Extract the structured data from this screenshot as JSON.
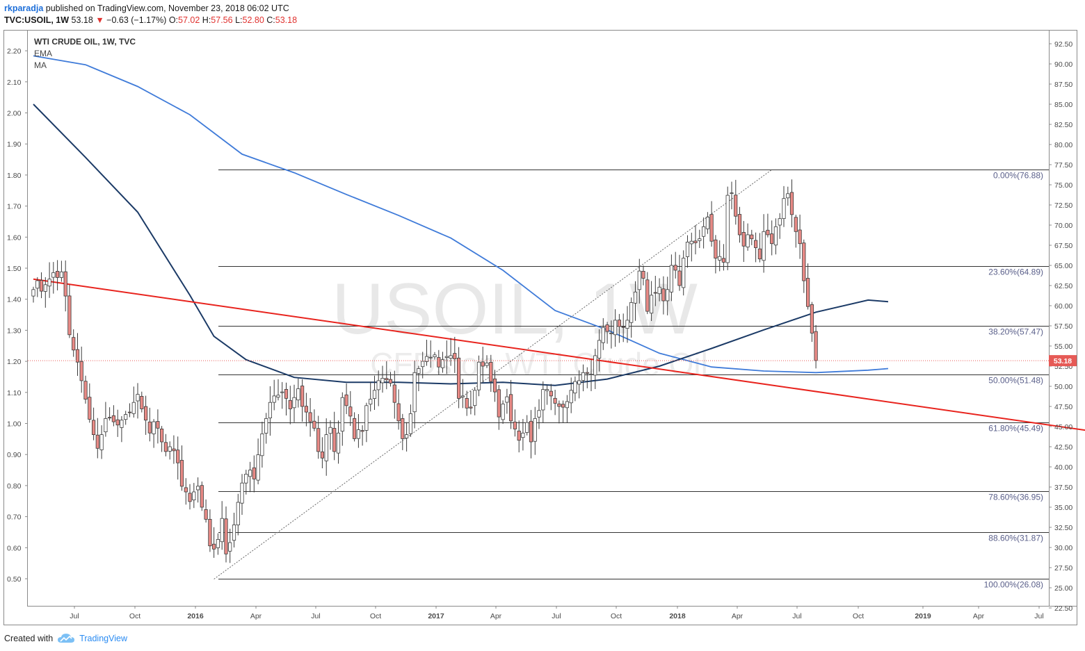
{
  "header": {
    "author": "rkparadja",
    "published": "published on TradingView.com, November 23, 2018 06:02 UTC",
    "symbol": "TVC:USOIL, 1W",
    "last": "53.18",
    "change": "−0.63 (−1.17%)",
    "o_label": "O:",
    "o_value": "57.02",
    "h_label": "H:",
    "h_value": "57.56",
    "l_label": "L:",
    "l_value": "52.80",
    "c_label": "C:",
    "c_value": "53.18"
  },
  "legend": {
    "title": "WTI CRUDE OIL, 1W, TVC",
    "ema": "EMA",
    "ma": "MA"
  },
  "watermark": {
    "big": "USOIL, 1W",
    "small": "CFDs on WTI Crude Oil"
  },
  "footer": {
    "created_with": "Created with",
    "brand": "TradingView"
  },
  "colors": {
    "up_candle": "#ffffff",
    "down_candle": "#e88a86",
    "candle_outline": "#3a3a3a",
    "ema": "#1b3a66",
    "ma": "#3f7bd9",
    "trendline": "#e8231d",
    "fib_line": "#333333",
    "last_price": "#e65a56"
  },
  "chart_data": {
    "type": "candlestick",
    "title": "WTI CRUDE OIL, 1W, TVC",
    "timeframe": "1W",
    "x_ticks": [
      "Jul",
      "Oct",
      "2016",
      "Apr",
      "Jul",
      "Oct",
      "2017",
      "Apr",
      "Jul",
      "Oct",
      "2018",
      "Apr",
      "Jul",
      "Oct",
      "2019",
      "Apr",
      "Jul"
    ],
    "y_ticks_right": [
      "92.50",
      "90.00",
      "87.50",
      "85.00",
      "82.50",
      "80.00",
      "77.50",
      "75.00",
      "72.50",
      "70.00",
      "67.50",
      "65.00",
      "62.50",
      "60.00",
      "57.50",
      "55.00",
      "52.50",
      "50.00",
      "47.50",
      "45.00",
      "42.50",
      "40.00",
      "37.50",
      "35.00",
      "32.50",
      "30.00",
      "27.50",
      "25.00",
      "22.50"
    ],
    "y_ticks_left": [
      "2.20",
      "2.10",
      "2.00",
      "1.90",
      "1.80",
      "1.70",
      "1.60",
      "1.50",
      "1.40",
      "1.30",
      "1.20",
      "1.10",
      "1.00",
      "0.90",
      "0.80",
      "0.70",
      "0.60",
      "0.50"
    ],
    "ylim": [
      22.5,
      93.5
    ],
    "last_price_label": "53.18",
    "fib_levels": [
      {
        "label": "0.00%(76.88)",
        "price": 76.88
      },
      {
        "label": "23.60%(64.89)",
        "price": 64.89
      },
      {
        "label": "38.20%(57.47)",
        "price": 57.47
      },
      {
        "label": "50.00%(51.48)",
        "price": 51.48
      },
      {
        "label": "61.80%(45.49)",
        "price": 45.49
      },
      {
        "label": "78.60%(36.95)",
        "price": 36.95
      },
      {
        "label": "88.60%(31.87)",
        "price": 31.87
      },
      {
        "label": "100.00%(26.08)",
        "price": 26.08
      }
    ],
    "closes": [
      62.0,
      63.1,
      61.8,
      62.6,
      63.3,
      64.1,
      63.5,
      64.2,
      61.2,
      56.4,
      54.5,
      53.0,
      50.7,
      48.4,
      45.9,
      44.0,
      42.3,
      44.0,
      46.0,
      46.1,
      45.6,
      45.2,
      45.8,
      46.5,
      46.8,
      48.0,
      49.0,
      47.2,
      45.8,
      44.2,
      45.6,
      44.8,
      43.1,
      41.9,
      42.5,
      42.0,
      40.5,
      37.6,
      36.9,
      35.7,
      36.9,
      37.6,
      35.0,
      33.5,
      30.2,
      29.8,
      31.0,
      33.6,
      29.2,
      30.6,
      32.8,
      35.6,
      38.0,
      39.1,
      39.6,
      38.5,
      41.5,
      44.1,
      46.0,
      48.0,
      48.8,
      48.9,
      49.3,
      48.5,
      47.2,
      48.6,
      49.7,
      47.5,
      46.8,
      45.6,
      44.8,
      41.9,
      41.1,
      44.0,
      44.9,
      41.9,
      44.2,
      48.6,
      47.6,
      46.3,
      43.5,
      44.6,
      44.4,
      47.6,
      48.4,
      49.5,
      50.7,
      51.0,
      50.8,
      50.4,
      48.0,
      45.7,
      43.5,
      44.0,
      46.6,
      51.7,
      52.2,
      53.1,
      53.7,
      53.6,
      53.9,
      52.4,
      53.3,
      53.7,
      53.8,
      53.4,
      48.5,
      48.8,
      47.3,
      47.3,
      49.5,
      53.0,
      52.5,
      52.9,
      50.6,
      49.3,
      46.2,
      47.8,
      48.7,
      45.7,
      44.7,
      43.3,
      44.2,
      45.5,
      43.1,
      46.0,
      47.0,
      49.6,
      49.6,
      48.8,
      47.9,
      47.5,
      47.4,
      48.1,
      49.5,
      50.6,
      50.7,
      51.7,
      51.6,
      51.5,
      53.8,
      55.7,
      57.3,
      56.8,
      56.6,
      58.2,
      57.4,
      57.3,
      58.2,
      60.4,
      61.7,
      64.3,
      63.4,
      59.3,
      61.3,
      61.6,
      62.3,
      60.6,
      62.0,
      65.0,
      64.4,
      62.5,
      65.9,
      67.9,
      68.0,
      67.8,
      68.3,
      69.8,
      71.0,
      68.0,
      65.9,
      66.1,
      65.4,
      73.7,
      74.0,
      71.1,
      68.8,
      67.4,
      68.8,
      68.3,
      67.2,
      65.8,
      69.2,
      68.8,
      67.7,
      69.8,
      70.8,
      73.3,
      73.9,
      71.3,
      69.2,
      67.7,
      63.1,
      59.9,
      56.6,
      53.2
    ],
    "ema_values": [
      [
        0,
        85.0
      ],
      [
        13,
        78.4
      ],
      [
        26,
        71.6
      ],
      [
        39,
        61.3
      ],
      [
        45,
        56.2
      ],
      [
        53,
        53.3
      ],
      [
        65,
        51.1
      ],
      [
        78,
        50.5
      ],
      [
        91,
        50.5
      ],
      [
        104,
        50.3
      ],
      [
        117,
        50.5
      ],
      [
        130,
        50.1
      ],
      [
        143,
        50.9
      ],
      [
        156,
        52.5
      ],
      [
        169,
        54.7
      ],
      [
        182,
        57.0
      ],
      [
        195,
        59.2
      ],
      [
        208,
        60.7
      ],
      [
        213,
        60.5
      ]
    ],
    "ma_values": [
      [
        0,
        91.0
      ],
      [
        13,
        89.9
      ],
      [
        26,
        87.2
      ],
      [
        39,
        83.7
      ],
      [
        52,
        78.8
      ],
      [
        65,
        76.5
      ],
      [
        78,
        73.8
      ],
      [
        91,
        71.2
      ],
      [
        104,
        68.4
      ],
      [
        117,
        64.4
      ],
      [
        130,
        59.4
      ],
      [
        143,
        57.0
      ],
      [
        156,
        54.1
      ],
      [
        169,
        52.4
      ],
      [
        182,
        51.9
      ],
      [
        195,
        51.7
      ],
      [
        208,
        52.0
      ],
      [
        213,
        52.2
      ]
    ],
    "trendline": {
      "start_week": 0,
      "start_price": 63.3,
      "end_week": 267,
      "end_price": 44.2
    },
    "dotted_line": {
      "from": [
        45,
        26.08
      ],
      "to": [
        184,
        76.88
      ]
    }
  }
}
